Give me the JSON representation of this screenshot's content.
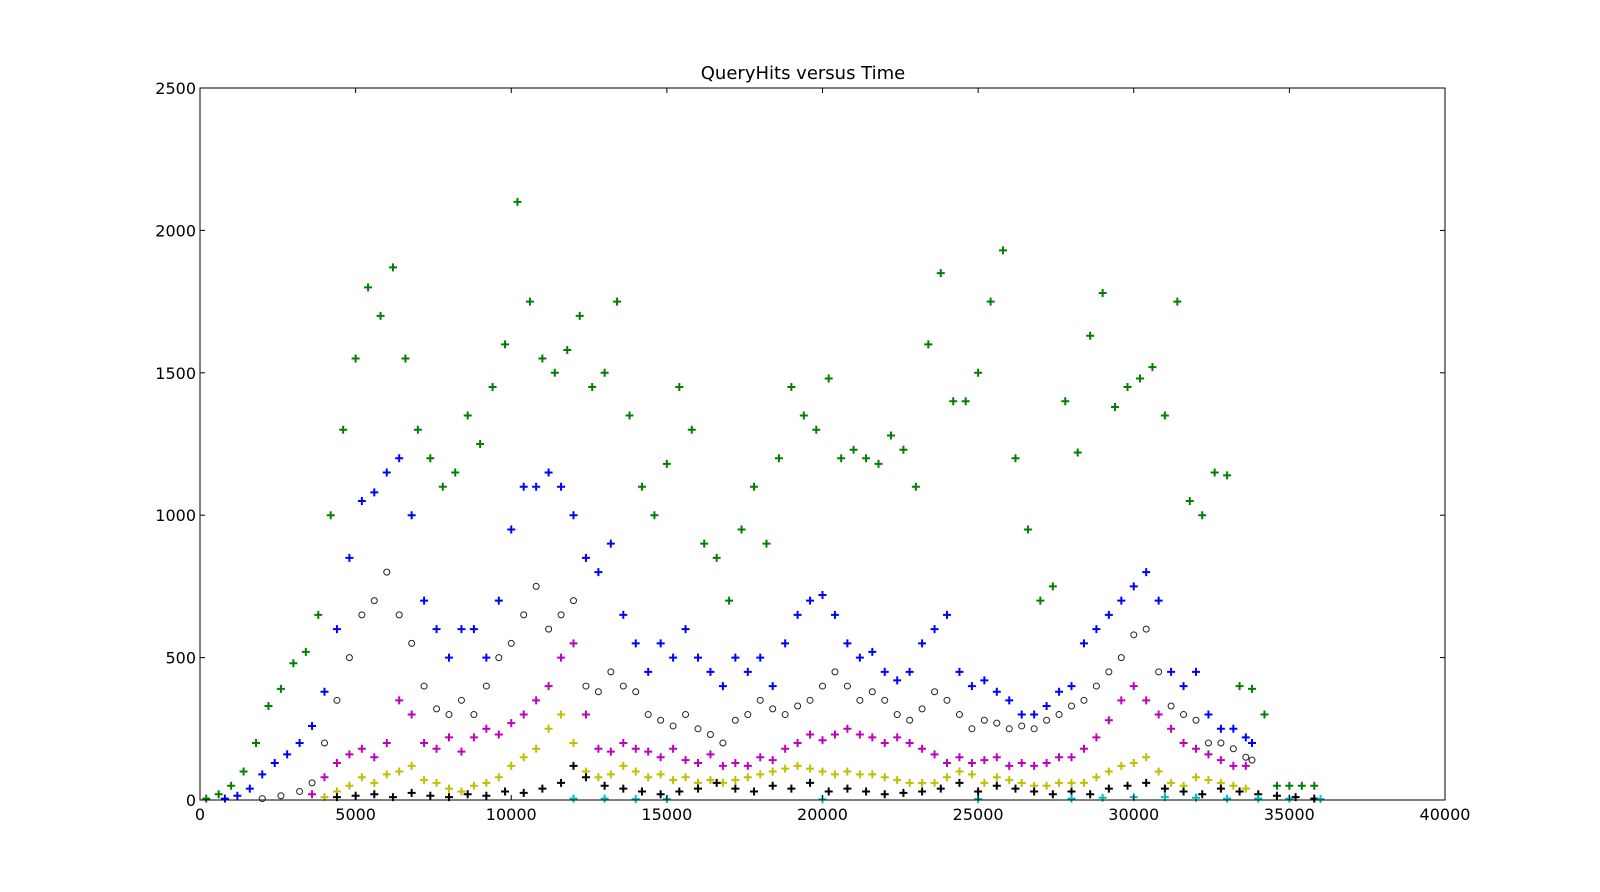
{
  "chart_data": {
    "type": "scatter",
    "title": "QueryHits versus Time",
    "xlabel": "",
    "ylabel": "",
    "xlim": [
      0,
      40000
    ],
    "ylim": [
      0,
      2500
    ],
    "xticks": [
      0,
      5000,
      10000,
      15000,
      20000,
      25000,
      30000,
      35000,
      40000
    ],
    "yticks": [
      0,
      500,
      1000,
      1500,
      2000,
      2500
    ],
    "grid": false,
    "legend": "none",
    "series": [
      {
        "color": "#008000",
        "marker": "plus",
        "x": [
          200,
          600,
          1000,
          1400,
          1800,
          2200,
          2600,
          3000,
          3400,
          3800,
          4200,
          4600,
          5000,
          5400,
          5800,
          6200,
          6600,
          7000,
          7400,
          7800,
          8200,
          8600,
          9000,
          9400,
          9800,
          10200,
          10600,
          11000,
          11400,
          11800,
          12200,
          12600,
          13000,
          13400,
          13800,
          14200,
          14600,
          15000,
          15400,
          15800,
          16200,
          16600,
          17000,
          17400,
          17800,
          18200,
          18600,
          19000,
          19400,
          19800,
          20200,
          20600,
          21000,
          21400,
          21800,
          22200,
          22600,
          23000,
          23400,
          23800,
          24200,
          24600,
          25000,
          25400,
          25800,
          26200,
          26600,
          27000,
          27400,
          27800,
          28200,
          28600,
          29000,
          29400,
          29800,
          30200,
          30600,
          31000,
          31400,
          31800,
          32200,
          32600,
          33000,
          33400,
          33800,
          34200,
          34600,
          35000,
          35400,
          35800
        ],
        "y": [
          5,
          20,
          50,
          100,
          200,
          330,
          390,
          480,
          520,
          650,
          1000,
          1300,
          1550,
          1800,
          1700,
          1870,
          1550,
          1300,
          1200,
          1100,
          1150,
          1350,
          1250,
          1450,
          1600,
          2100,
          1750,
          1550,
          1500,
          1580,
          1700,
          1450,
          1500,
          1750,
          1350,
          1100,
          1000,
          1180,
          1450,
          1300,
          900,
          850,
          700,
          950,
          1100,
          900,
          1200,
          1450,
          1350,
          1300,
          1480,
          1200,
          1230,
          1200,
          1180,
          1280,
          1230,
          1100,
          1600,
          1850,
          1400,
          1400,
          1500,
          1750,
          1930,
          1200,
          950,
          700,
          750,
          1400,
          1220,
          1630,
          1780,
          1380,
          1450,
          1480,
          1520,
          1350,
          1750,
          1050,
          1000,
          1150,
          1140,
          400,
          390,
          300,
          50,
          50,
          50,
          50
        ]
      },
      {
        "color": "#0000ff",
        "marker": "plus",
        "x": [
          800,
          1200,
          1600,
          2000,
          2400,
          2800,
          3200,
          3600,
          4000,
          4400,
          4800,
          5200,
          5600,
          6000,
          6400,
          6800,
          7200,
          7600,
          8000,
          8400,
          8800,
          9200,
          9600,
          10000,
          10400,
          10800,
          11200,
          11600,
          12000,
          12400,
          12800,
          13200,
          13600,
          14000,
          14400,
          14800,
          15200,
          15600,
          16000,
          16400,
          16800,
          17200,
          17600,
          18000,
          18400,
          18800,
          19200,
          19600,
          20000,
          20400,
          20800,
          21200,
          21600,
          22000,
          22400,
          22800,
          23200,
          23600,
          24000,
          24400,
          24800,
          25200,
          25600,
          26000,
          26400,
          26800,
          27200,
          27600,
          28000,
          28400,
          28800,
          29200,
          29600,
          30000,
          30400,
          30800,
          31200,
          31600,
          32000,
          32400,
          32800,
          33200,
          33600,
          33800
        ],
        "y": [
          5,
          15,
          40,
          90,
          130,
          160,
          200,
          260,
          380,
          600,
          850,
          1050,
          1080,
          1150,
          1200,
          1000,
          700,
          600,
          500,
          600,
          600,
          500,
          700,
          950,
          1100,
          1100,
          1150,
          1100,
          1000,
          850,
          800,
          900,
          650,
          550,
          450,
          550,
          500,
          600,
          500,
          450,
          400,
          500,
          450,
          500,
          400,
          550,
          650,
          700,
          720,
          650,
          550,
          500,
          520,
          450,
          420,
          450,
          550,
          600,
          650,
          450,
          400,
          420,
          380,
          350,
          300,
          300,
          330,
          380,
          400,
          550,
          600,
          650,
          700,
          750,
          800,
          700,
          450,
          400,
          450,
          300,
          250,
          250,
          220,
          200
        ]
      },
      {
        "color": "#222222",
        "marker": "circle",
        "x": [
          2000,
          2600,
          3200,
          3600,
          4000,
          4400,
          4800,
          5200,
          5600,
          6000,
          6400,
          6800,
          7200,
          7600,
          8000,
          8400,
          8800,
          9200,
          9600,
          10000,
          10400,
          10800,
          11200,
          11600,
          12000,
          12400,
          12800,
          13200,
          13600,
          14000,
          14400,
          14800,
          15200,
          15600,
          16000,
          16400,
          16800,
          17200,
          17600,
          18000,
          18400,
          18800,
          19200,
          19600,
          20000,
          20400,
          20800,
          21200,
          21600,
          22000,
          22400,
          22800,
          23200,
          23600,
          24000,
          24400,
          24800,
          25200,
          25600,
          26000,
          26400,
          26800,
          27200,
          27600,
          28000,
          28400,
          28800,
          29200,
          29600,
          30000,
          30400,
          30800,
          31200,
          31600,
          32000,
          32400,
          32800,
          33200,
          33600,
          33800
        ],
        "y": [
          5,
          15,
          30,
          60,
          200,
          350,
          500,
          650,
          700,
          800,
          650,
          550,
          400,
          320,
          300,
          350,
          300,
          400,
          500,
          550,
          650,
          750,
          600,
          650,
          700,
          400,
          380,
          450,
          400,
          380,
          300,
          280,
          260,
          300,
          250,
          230,
          200,
          280,
          300,
          350,
          320,
          300,
          330,
          350,
          400,
          450,
          400,
          350,
          380,
          350,
          300,
          280,
          320,
          380,
          350,
          300,
          250,
          280,
          270,
          250,
          260,
          250,
          280,
          300,
          330,
          350,
          400,
          450,
          500,
          580,
          600,
          450,
          330,
          300,
          280,
          200,
          200,
          180,
          150,
          140
        ]
      },
      {
        "color": "#bf00bf",
        "marker": "plus",
        "x": [
          3600,
          4000,
          4400,
          4800,
          5200,
          5600,
          6000,
          6400,
          6800,
          7200,
          7600,
          8000,
          8400,
          8800,
          9200,
          9600,
          10000,
          10400,
          10800,
          11200,
          11600,
          12000,
          12400,
          12800,
          13200,
          13600,
          14000,
          14400,
          14800,
          15200,
          15600,
          16000,
          16400,
          16800,
          17200,
          17600,
          18000,
          18400,
          18800,
          19200,
          19600,
          20000,
          20400,
          20800,
          21200,
          21600,
          22000,
          22400,
          22800,
          23200,
          23600,
          24000,
          24400,
          24800,
          25200,
          25600,
          26000,
          26400,
          26800,
          27200,
          27600,
          28000,
          28400,
          28800,
          29200,
          29600,
          30000,
          30400,
          30800,
          31200,
          31600,
          32000,
          32400,
          32800,
          33200,
          33600
        ],
        "y": [
          20,
          80,
          130,
          160,
          180,
          150,
          200,
          350,
          300,
          200,
          180,
          220,
          170,
          220,
          250,
          230,
          270,
          300,
          350,
          400,
          500,
          550,
          300,
          180,
          170,
          200,
          180,
          170,
          150,
          180,
          140,
          130,
          160,
          120,
          130,
          120,
          150,
          140,
          180,
          200,
          230,
          210,
          230,
          250,
          230,
          220,
          200,
          220,
          200,
          180,
          160,
          130,
          150,
          130,
          140,
          150,
          120,
          130,
          120,
          130,
          150,
          150,
          180,
          220,
          280,
          350,
          400,
          350,
          300,
          250,
          200,
          180,
          160,
          140,
          120,
          120
        ]
      },
      {
        "color": "#bfbf00",
        "marker": "plus",
        "x": [
          4000,
          4400,
          4800,
          5200,
          5600,
          6000,
          6400,
          6800,
          7200,
          7600,
          8000,
          8400,
          8800,
          9200,
          9600,
          10000,
          10400,
          10800,
          11200,
          11600,
          12000,
          12400,
          12800,
          13200,
          13600,
          14000,
          14400,
          14800,
          15200,
          15600,
          16000,
          16400,
          16800,
          17200,
          17600,
          18000,
          18400,
          18800,
          19200,
          19600,
          20000,
          20400,
          20800,
          21200,
          21600,
          22000,
          22400,
          22800,
          23200,
          23600,
          24000,
          24400,
          24800,
          25200,
          25600,
          26000,
          26400,
          26800,
          27200,
          27600,
          28000,
          28400,
          28800,
          29200,
          29600,
          30000,
          30400,
          30800,
          31200,
          31600,
          32000,
          32400,
          32800,
          33200,
          33600
        ],
        "y": [
          10,
          30,
          50,
          80,
          60,
          90,
          100,
          120,
          70,
          60,
          40,
          30,
          50,
          60,
          80,
          120,
          150,
          180,
          250,
          300,
          200,
          100,
          80,
          90,
          120,
          100,
          80,
          90,
          70,
          80,
          60,
          70,
          60,
          70,
          80,
          90,
          100,
          110,
          120,
          110,
          100,
          90,
          100,
          90,
          90,
          80,
          70,
          60,
          60,
          60,
          80,
          100,
          90,
          60,
          80,
          70,
          60,
          50,
          50,
          60,
          60,
          60,
          80,
          100,
          120,
          130,
          150,
          100,
          60,
          50,
          80,
          70,
          60,
          50,
          40
        ]
      },
      {
        "color": "#000000",
        "marker": "plus",
        "x": [
          4400,
          5000,
          5600,
          6200,
          6800,
          7400,
          8000,
          8600,
          9200,
          9800,
          10400,
          11000,
          11600,
          12000,
          12400,
          13000,
          13600,
          14200,
          14800,
          15400,
          16000,
          16600,
          17200,
          17800,
          18400,
          19000,
          19600,
          20200,
          20800,
          21400,
          22000,
          22600,
          23200,
          23800,
          24400,
          25000,
          25600,
          26200,
          26800,
          27400,
          28000,
          28600,
          29200,
          29800,
          30400,
          31000,
          31600,
          32200,
          32800,
          33400,
          34000,
          34600,
          35200,
          35800
        ],
        "y": [
          10,
          15,
          20,
          10,
          25,
          15,
          10,
          20,
          15,
          30,
          25,
          40,
          60,
          120,
          80,
          50,
          40,
          30,
          20,
          30,
          40,
          60,
          40,
          30,
          50,
          40,
          60,
          30,
          40,
          30,
          20,
          25,
          30,
          40,
          60,
          30,
          50,
          40,
          30,
          20,
          30,
          20,
          40,
          50,
          60,
          40,
          30,
          20,
          40,
          30,
          20,
          15,
          10,
          5
        ]
      },
      {
        "color": "#00bfbf",
        "marker": "plus",
        "x": [
          12000,
          13000,
          14000,
          15000,
          20000,
          25000,
          28000,
          29000,
          30000,
          31000,
          32000,
          33000,
          34000,
          35000,
          36000
        ],
        "y": [
          5,
          5,
          3,
          3,
          2,
          3,
          5,
          8,
          10,
          10,
          8,
          5,
          5,
          5,
          3
        ]
      }
    ]
  }
}
